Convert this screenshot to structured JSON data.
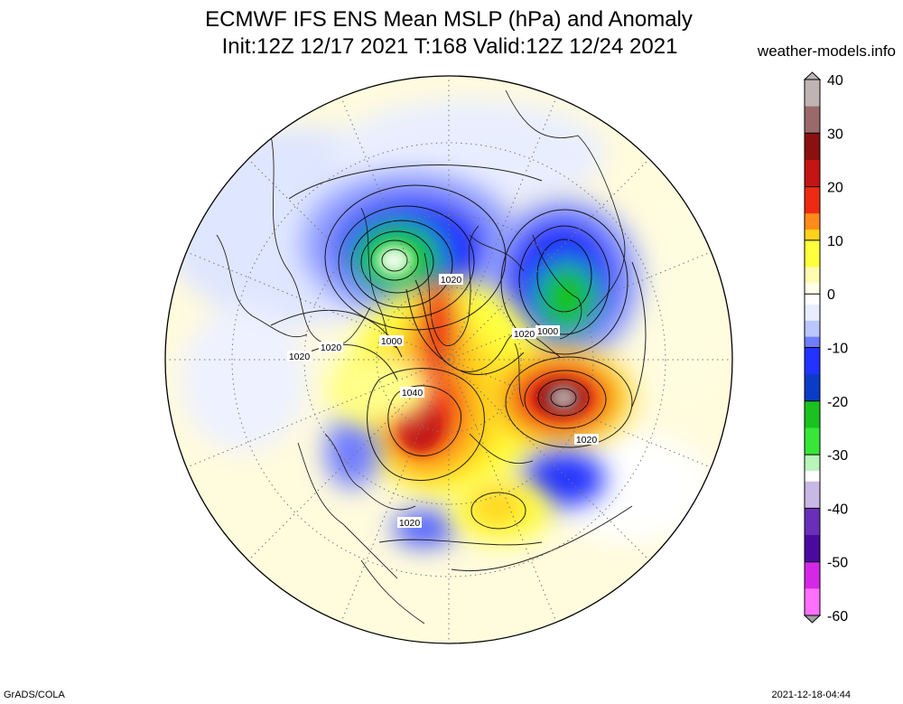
{
  "title_line1": "ECMWF IFS ENS Mean MSLP (hPa) and Anomaly",
  "title_line2": "Init:12Z 12/17 2021  T:168 Valid:12Z 12/24 2021",
  "credit": "weather-models.info",
  "footer_left": "GrADS/COLA",
  "footer_right": "2021-12-18-04:44",
  "colorbar": {
    "ticks": [
      40,
      30,
      20,
      10,
      0,
      -10,
      -20,
      -30,
      -40,
      -50,
      -60
    ],
    "range": [
      -60,
      40
    ],
    "colors": {
      "40": "#bfb3b3",
      "35": "#9a6a6a",
      "30": "#8b1010",
      "25": "#c41414",
      "20": "#ee2b12",
      "15": "#ff8c1a",
      "12": "#ffd21c",
      "10": "#ffff3c",
      "5": "#fffbb0",
      "2": "#ffffea",
      "0": "#ffffff",
      "-2": "#e8eeff",
      "-5": "#b9c6ff",
      "-8": "#6f7dff",
      "-10": "#2233ff",
      "-15": "#0a3cc8",
      "-20": "#19c21e",
      "-25": "#37e637",
      "-30": "#b8f5b8",
      "-33": "#ffffff",
      "-35": "#c8b8e6",
      "-40": "#6a2fb8",
      "-45": "#4a0aa0",
      "-50": "#d428e6",
      "-55": "#ff70ff",
      "-60": "#a0a0a0"
    }
  },
  "map": {
    "projection": "north-polar-stereographic",
    "isobar_labels": [
      {
        "text": "1020"
      },
      {
        "text": "1000"
      },
      {
        "text": "1020"
      },
      {
        "text": "1020"
      },
      {
        "text": "1040"
      },
      {
        "text": "1020"
      },
      {
        "text": "1000"
      },
      {
        "text": "1020"
      },
      {
        "text": "1020"
      }
    ]
  }
}
